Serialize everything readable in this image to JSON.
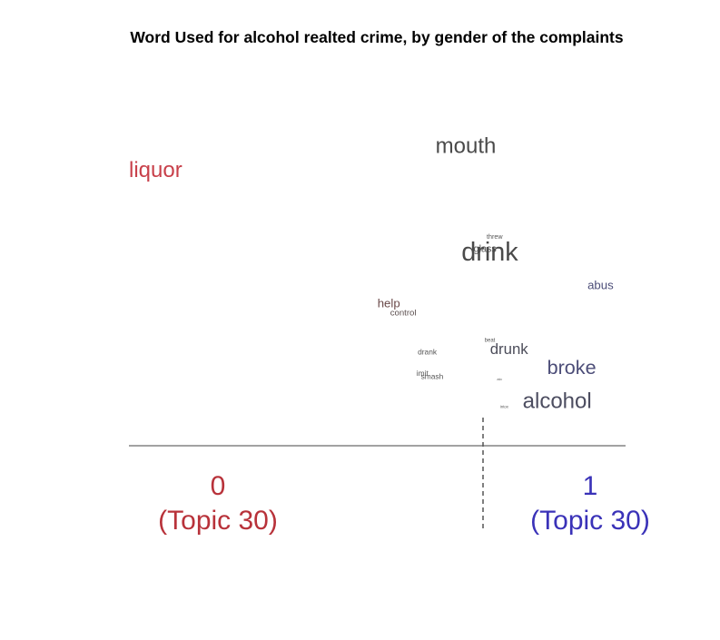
{
  "chart_data": {
    "type": "scatter",
    "subtype": "word-position-plot",
    "title": "Word Used for alcohol realted crime, by gender of the complaints",
    "xlabel": "",
    "ylabel": "",
    "xlim": [
      0,
      1
    ],
    "grid": false,
    "legend": "none",
    "groups": [
      {
        "label": "0",
        "sublabel": "(Topic 30)",
        "color": "#b8323a"
      },
      {
        "label": "1",
        "sublabel": "(Topic 30)",
        "color": "#3a32b8"
      }
    ],
    "divider": 0.7,
    "words": [
      {
        "text": "mouth",
        "x": 0.7,
        "y": 0.89,
        "size": 1.0,
        "color": "#4a4a4a"
      },
      {
        "text": "liquor",
        "x": 0.0,
        "y": 0.81,
        "size": 1.0,
        "color": "#c8404a"
      },
      {
        "text": "threw",
        "x": 0.76,
        "y": 0.59,
        "size": 0.3,
        "color": "#555555"
      },
      {
        "text": "glass",
        "x": 0.74,
        "y": 0.55,
        "size": 0.45,
        "color": "#555555"
      },
      {
        "text": "drink",
        "x": 0.75,
        "y": 0.54,
        "size": 1.2,
        "color": "#4a4a4a"
      },
      {
        "text": "abus",
        "x": 0.98,
        "y": 0.43,
        "size": 0.55,
        "color": "#4c4d78"
      },
      {
        "text": "help",
        "x": 0.54,
        "y": 0.37,
        "size": 0.55,
        "color": "#6b4a4a"
      },
      {
        "text": "control",
        "x": 0.57,
        "y": 0.34,
        "size": 0.4,
        "color": "#5a4d4d"
      },
      {
        "text": "beat",
        "x": 0.75,
        "y": 0.25,
        "size": 0.25,
        "color": "#555555"
      },
      {
        "text": "drunk",
        "x": 0.79,
        "y": 0.22,
        "size": 0.7,
        "color": "#4c4d5a"
      },
      {
        "text": "drank",
        "x": 0.62,
        "y": 0.21,
        "size": 0.35,
        "color": "#555555"
      },
      {
        "text": "broke",
        "x": 0.92,
        "y": 0.16,
        "size": 0.9,
        "color": "#4c4d78"
      },
      {
        "text": "imit",
        "x": 0.61,
        "y": 0.14,
        "size": 0.35,
        "color": "#555555"
      },
      {
        "text": "smash",
        "x": 0.63,
        "y": 0.13,
        "size": 0.35,
        "color": "#555555"
      },
      {
        "text": "alo",
        "x": 0.77,
        "y": 0.12,
        "size": 0.15,
        "color": "#555555"
      },
      {
        "text": "intox",
        "x": 0.78,
        "y": 0.03,
        "size": 0.18,
        "color": "#555555"
      },
      {
        "text": "alcohol",
        "x": 0.89,
        "y": 0.05,
        "size": 1.0,
        "color": "#4c4d60"
      }
    ]
  }
}
